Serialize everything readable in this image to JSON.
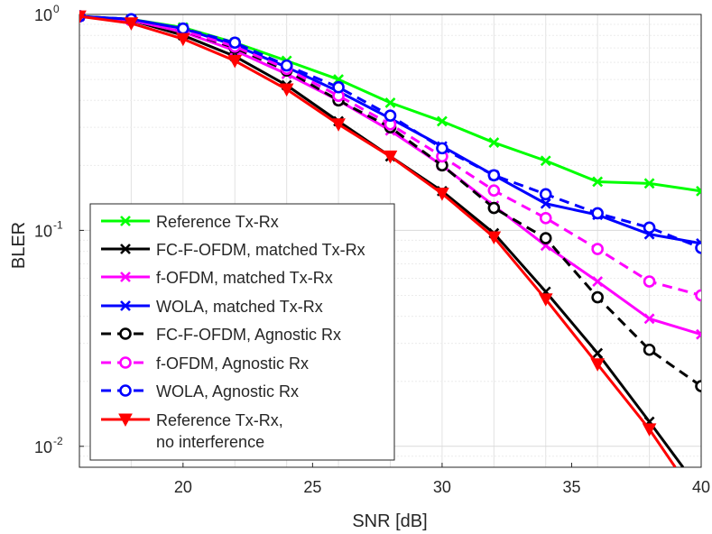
{
  "chart_data": {
    "type": "line",
    "title": "",
    "xlabel": "SNR [dB]",
    "ylabel": "BLER",
    "yscale": "log",
    "xlim": [
      16,
      40
    ],
    "ylim": [
      0.008,
      1
    ],
    "grid": true,
    "x_ticks": [
      20,
      25,
      30,
      35,
      40
    ],
    "y_ticks": [
      {
        "value": 1,
        "base": "10",
        "exp": "0"
      },
      {
        "value": 0.1,
        "base": "10",
        "exp": "-1"
      },
      {
        "value": 0.01,
        "base": "10",
        "exp": "-2"
      }
    ],
    "legend_position": "bottom-left",
    "series": [
      {
        "name": "Reference Tx-Rx",
        "color": "#00ff00",
        "dash": "solid",
        "marker": "x",
        "x": [
          16,
          18,
          20,
          22,
          24,
          26,
          28,
          30,
          32,
          34,
          36,
          38,
          40
        ],
        "y": [
          0.98,
          0.95,
          0.87,
          0.74,
          0.61,
          0.5,
          0.39,
          0.32,
          0.255,
          0.21,
          0.168,
          0.165,
          0.152
        ]
      },
      {
        "name": "FC-F-OFDM, matched Tx-Rx",
        "color": "#000000",
        "dash": "solid",
        "marker": "x",
        "x": [
          16,
          18,
          20,
          22,
          24,
          26,
          28,
          30,
          32,
          34,
          36,
          38,
          39.3
        ],
        "y": [
          0.98,
          0.94,
          0.8,
          0.64,
          0.47,
          0.32,
          0.22,
          0.152,
          0.097,
          0.052,
          0.027,
          0.013,
          0.008
        ]
      },
      {
        "name": "f-OFDM, matched Tx-Rx",
        "color": "#ff00ff",
        "dash": "solid",
        "marker": "x",
        "x": [
          16,
          18,
          20,
          22,
          24,
          26,
          28,
          30,
          32,
          34,
          36,
          38,
          40
        ],
        "y": [
          0.98,
          0.94,
          0.83,
          0.68,
          0.53,
          0.4,
          0.29,
          0.2,
          0.13,
          0.085,
          0.058,
          0.039,
          0.033
        ]
      },
      {
        "name": "WOLA, matched Tx-Rx",
        "color": "#0000ff",
        "dash": "solid",
        "marker": "x",
        "x": [
          16,
          18,
          20,
          22,
          24,
          26,
          28,
          30,
          32,
          34,
          36,
          38,
          40
        ],
        "y": [
          0.98,
          0.95,
          0.86,
          0.72,
          0.57,
          0.44,
          0.33,
          0.245,
          0.18,
          0.133,
          0.118,
          0.096,
          0.087
        ]
      },
      {
        "name": "FC-F-OFDM, Agnostic Rx",
        "color": "#000000",
        "dash": "dashed",
        "marker": "o",
        "x": [
          16,
          18,
          20,
          22,
          24,
          26,
          28,
          30,
          32,
          34,
          36,
          38,
          40
        ],
        "y": [
          0.98,
          0.94,
          0.84,
          0.7,
          0.55,
          0.4,
          0.3,
          0.2,
          0.127,
          0.092,
          0.049,
          0.028,
          0.019
        ]
      },
      {
        "name": "f-OFDM, Agnostic Rx",
        "color": "#ff00ff",
        "dash": "dashed",
        "marker": "o",
        "x": [
          16,
          18,
          20,
          22,
          24,
          26,
          28,
          30,
          32,
          34,
          36,
          38,
          40
        ],
        "y": [
          0.98,
          0.94,
          0.84,
          0.71,
          0.56,
          0.42,
          0.31,
          0.22,
          0.153,
          0.114,
          0.082,
          0.058,
          0.05
        ]
      },
      {
        "name": "WOLA, Agnostic Rx",
        "color": "#0000ff",
        "dash": "dashed",
        "marker": "o",
        "x": [
          16,
          18,
          20,
          22,
          24,
          26,
          28,
          30,
          32,
          34,
          36,
          38,
          40
        ],
        "y": [
          0.98,
          0.95,
          0.86,
          0.74,
          0.58,
          0.46,
          0.34,
          0.24,
          0.18,
          0.147,
          0.12,
          0.103,
          0.083
        ]
      },
      {
        "name": "Reference Tx-Rx,",
        "name_line2": "no interference",
        "color": "#ff0000",
        "dash": "solid",
        "marker": "triangle-down",
        "x": [
          16,
          18,
          20,
          22,
          24,
          26,
          28,
          30,
          32,
          34,
          36,
          38,
          39
        ],
        "y": [
          0.98,
          0.91,
          0.77,
          0.61,
          0.45,
          0.31,
          0.22,
          0.148,
          0.093,
          0.048,
          0.024,
          0.012,
          0.008
        ]
      }
    ]
  }
}
